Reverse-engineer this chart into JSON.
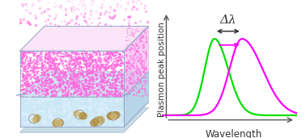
{
  "green_peak": 0.38,
  "magenta_peak": 0.58,
  "green_sigma_l": 0.07,
  "green_sigma_r": 0.1,
  "magenta_sigma_l": 0.09,
  "magenta_sigma_r": 0.15,
  "green_color": "#00e000",
  "magenta_color": "#ff00ff",
  "arrow_color": "#333333",
  "delta_label": "Δλ",
  "xlabel": "Wavelength",
  "ylabel": "Plasmon peak position",
  "background_color": "#ffffff",
  "axis_color": "#555555",
  "ylabel_fontsize": 7.5,
  "xlabel_fontsize": 8.5,
  "annotation_fontsize": 11,
  "dot_color_dense": "#ff66dd",
  "dot_color_sparse": "#ff88ee",
  "liquid_color": "#cce8f4",
  "substrate_color": "#b8d4e8",
  "glass_edge_color": "#99bbcc",
  "nano_color": "#c8b080"
}
